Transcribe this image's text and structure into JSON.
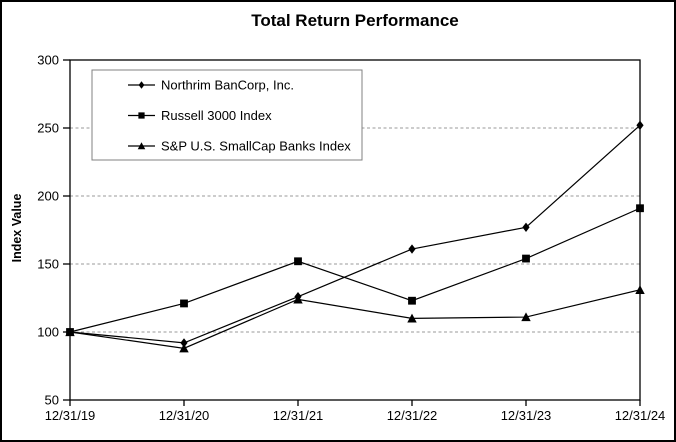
{
  "figure": {
    "title": "Total Return Performance",
    "y_axis_label": "Index Value"
  },
  "chart_data": {
    "type": "line",
    "title": "Total Return Performance",
    "xlabel": "",
    "ylabel": "Index Value",
    "categories": [
      "12/31/19",
      "12/31/20",
      "12/31/21",
      "12/31/22",
      "12/31/23",
      "12/31/24"
    ],
    "series": [
      {
        "name": "Northrim BanCorp, Inc.",
        "marker": "diamond",
        "values": [
          100,
          92,
          126,
          161,
          177,
          252
        ]
      },
      {
        "name": "Russell 3000 Index",
        "marker": "square",
        "values": [
          100,
          121,
          152,
          123,
          154,
          191
        ]
      },
      {
        "name": "S&P U.S. SmallCap Banks Index",
        "marker": "triangle",
        "values": [
          100,
          88,
          124,
          110,
          111,
          131
        ]
      }
    ],
    "ylim": [
      50,
      300
    ],
    "yticks": [
      50,
      100,
      150,
      200,
      250,
      300
    ],
    "gridlines_at": [
      100,
      150,
      200,
      250
    ],
    "grid": true,
    "legend_position": "top-left-inside",
    "line_color": "#000000",
    "grid_color": "#999999",
    "legend_border_color": "#808080",
    "background_color": "#ffffff",
    "border_color": "#000000"
  }
}
